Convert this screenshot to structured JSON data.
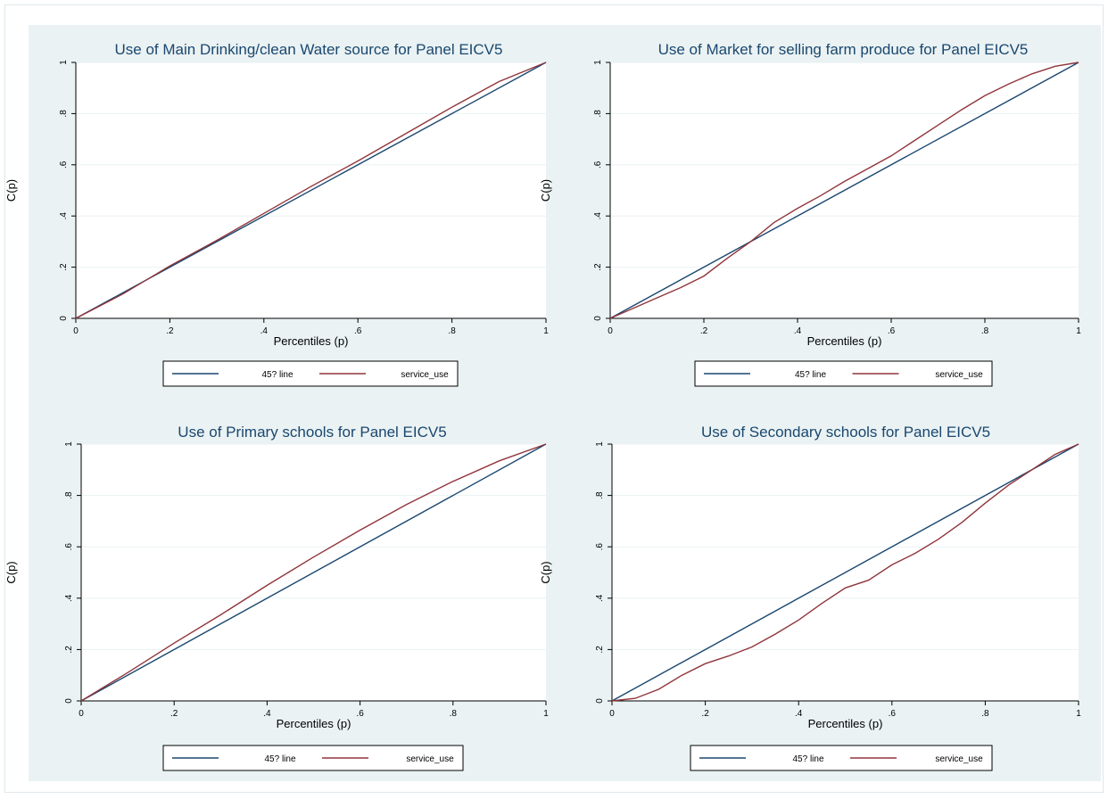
{
  "colors": {
    "background": "#eaf2f3",
    "plot_area": "#ffffff",
    "line_45": "#1a476f",
    "service_use": "#90353b",
    "title": "#1a476f"
  },
  "chart_data": [
    {
      "type": "line",
      "title": "Use of Main Drinking/clean Water source for Panel EICV5",
      "xlabel": "Percentiles (p)",
      "ylabel": "C(p)",
      "xlim": [
        0,
        1
      ],
      "ylim": [
        0,
        1
      ],
      "xticks": [
        "0",
        ".2",
        ".4",
        ".6",
        ".8",
        "1"
      ],
      "yticks": [
        "0",
        ".2",
        ".4",
        ".6",
        ".8",
        "1"
      ],
      "grid": "horizontal",
      "legend": "bottom",
      "series": [
        {
          "name": "45? line",
          "color": "#1a476f",
          "x": [
            0,
            1
          ],
          "y": [
            0,
            1
          ]
        },
        {
          "name": "service_use",
          "color": "#90353b",
          "x": [
            0,
            0.1,
            0.2,
            0.3,
            0.4,
            0.5,
            0.6,
            0.7,
            0.8,
            0.9,
            1.0
          ],
          "y": [
            0,
            0.095,
            0.205,
            0.305,
            0.41,
            0.515,
            0.615,
            0.72,
            0.825,
            0.925,
            1.0
          ]
        }
      ]
    },
    {
      "type": "line",
      "title": "Use of Market for selling farm produce for Panel EICV5",
      "xlabel": "Percentiles (p)",
      "ylabel": "C(p)",
      "xlim": [
        0,
        1
      ],
      "ylim": [
        0,
        1
      ],
      "xticks": [
        "0",
        ".2",
        ".4",
        ".6",
        ".8",
        "1"
      ],
      "yticks": [
        "0",
        ".2",
        ".4",
        ".6",
        ".8",
        "1"
      ],
      "grid": "horizontal",
      "legend": "bottom",
      "series": [
        {
          "name": "45? line",
          "color": "#1a476f",
          "x": [
            0,
            1
          ],
          "y": [
            0,
            1
          ]
        },
        {
          "name": "service_use",
          "color": "#90353b",
          "x": [
            0,
            0.05,
            0.1,
            0.15,
            0.2,
            0.25,
            0.3,
            0.35,
            0.4,
            0.45,
            0.5,
            0.55,
            0.6,
            0.65,
            0.7,
            0.75,
            0.8,
            0.85,
            0.9,
            0.95,
            1.0
          ],
          "y": [
            0,
            0.04,
            0.08,
            0.12,
            0.165,
            0.235,
            0.3,
            0.375,
            0.43,
            0.48,
            0.535,
            0.585,
            0.635,
            0.695,
            0.755,
            0.815,
            0.87,
            0.915,
            0.955,
            0.985,
            1.0
          ]
        }
      ]
    },
    {
      "type": "line",
      "title": "Use of Primary schools for Panel EICV5",
      "xlabel": "Percentiles (p)",
      "ylabel": "C(p)",
      "xlim": [
        0,
        1
      ],
      "ylim": [
        0,
        1
      ],
      "xticks": [
        "0",
        ".2",
        ".4",
        ".6",
        ".8",
        "1"
      ],
      "yticks": [
        "0",
        ".2",
        ".4",
        ".6",
        ".8",
        "1"
      ],
      "grid": "horizontal",
      "legend": "bottom",
      "series": [
        {
          "name": "45? line",
          "color": "#1a476f",
          "x": [
            0,
            1
          ],
          "y": [
            0,
            1
          ]
        },
        {
          "name": "service_use",
          "color": "#90353b",
          "x": [
            0,
            0.1,
            0.2,
            0.3,
            0.4,
            0.5,
            0.6,
            0.7,
            0.8,
            0.9,
            1.0
          ],
          "y": [
            0,
            0.11,
            0.225,
            0.335,
            0.45,
            0.56,
            0.665,
            0.765,
            0.855,
            0.935,
            1.0
          ]
        }
      ]
    },
    {
      "type": "line",
      "title": "Use of Secondary schools for Panel EICV5",
      "xlabel": "Percentiles (p)",
      "ylabel": "C(p)",
      "xlim": [
        0,
        1
      ],
      "ylim": [
        0,
        1
      ],
      "xticks": [
        "0",
        ".2",
        ".4",
        ".6",
        ".8",
        "1"
      ],
      "yticks": [
        "0",
        ".2",
        ".4",
        ".6",
        ".8",
        "1"
      ],
      "grid": "horizontal",
      "legend": "bottom",
      "series": [
        {
          "name": "45? line",
          "color": "#1a476f",
          "x": [
            0,
            1
          ],
          "y": [
            0,
            1
          ]
        },
        {
          "name": "service_use",
          "color": "#90353b",
          "x": [
            0,
            0.05,
            0.1,
            0.15,
            0.2,
            0.25,
            0.3,
            0.35,
            0.4,
            0.45,
            0.5,
            0.55,
            0.6,
            0.65,
            0.7,
            0.75,
            0.8,
            0.85,
            0.9,
            0.95,
            1.0
          ],
          "y": [
            0,
            0.01,
            0.045,
            0.1,
            0.145,
            0.175,
            0.21,
            0.26,
            0.315,
            0.38,
            0.44,
            0.47,
            0.53,
            0.575,
            0.63,
            0.695,
            0.77,
            0.84,
            0.9,
            0.96,
            1.0
          ]
        }
      ]
    }
  ]
}
